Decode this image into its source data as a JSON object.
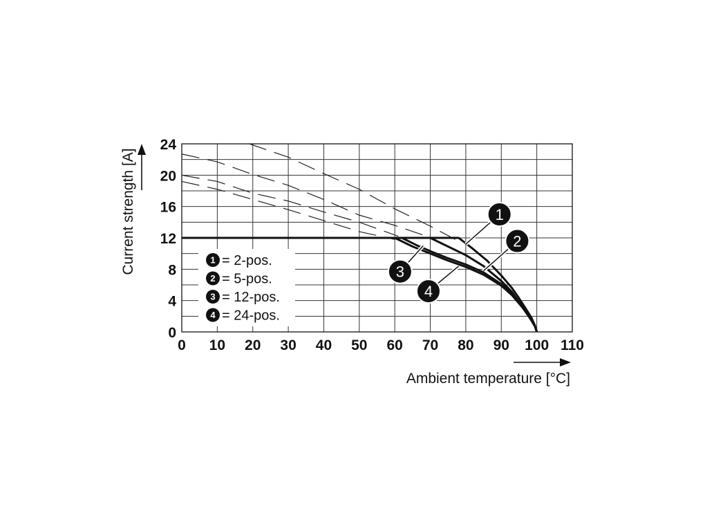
{
  "chart_data": {
    "type": "line",
    "xlabel": "Ambient temperature [°C]",
    "ylabel": "Current strength [A]",
    "xlim": [
      0,
      110
    ],
    "ylim": [
      0,
      24
    ],
    "x_ticks": [
      "0",
      "10",
      "20",
      "30",
      "40",
      "50",
      "60",
      "70",
      "80",
      "90",
      "100",
      "110"
    ],
    "y_ticks": [
      "0",
      "4",
      "8",
      "12",
      "16",
      "20",
      "24"
    ],
    "grid": true,
    "legend_position": "bottom-left",
    "legend": [
      {
        "number": "1",
        "label": "= 2-pos."
      },
      {
        "number": "2",
        "label": "= 5-pos."
      },
      {
        "number": "3",
        "label": "= 12-pos."
      },
      {
        "number": "4",
        "label": "= 24-pos."
      }
    ],
    "series": [
      {
        "number": "1",
        "style": "solid",
        "x": [
          0,
          78,
          82,
          86,
          90,
          93,
          95,
          97,
          98.5,
          99.5,
          100
        ],
        "y": [
          12,
          12,
          10.6,
          9.1,
          7.2,
          5.6,
          4.3,
          2.9,
          1.8,
          0.8,
          0
        ]
      },
      {
        "number": "2",
        "style": "solid",
        "x": [
          0,
          70,
          75,
          80,
          85,
          90,
          93,
          96,
          98,
          99.5,
          100
        ],
        "y": [
          12,
          12,
          10.9,
          9.8,
          8.4,
          6.5,
          5.1,
          3.2,
          1.9,
          0.7,
          0
        ]
      },
      {
        "number": "3",
        "style": "solid",
        "x": [
          0,
          62,
          66,
          70,
          75,
          80,
          85,
          90,
          93,
          96,
          98,
          99.5,
          100
        ],
        "y": [
          12,
          12,
          11.1,
          10.3,
          9.4,
          8.6,
          7.6,
          6.1,
          4.9,
          3.2,
          1.9,
          0.7,
          0
        ]
      },
      {
        "number": "4",
        "style": "solid",
        "x": [
          0,
          60,
          65,
          70,
          75,
          80,
          85,
          90,
          93,
          96,
          98,
          99.5,
          100
        ],
        "y": [
          12,
          12,
          10.9,
          10.0,
          9.1,
          8.3,
          7.3,
          5.9,
          4.7,
          3.1,
          1.8,
          0.7,
          0
        ]
      },
      {
        "number": "1",
        "style": "dashed",
        "x": [
          19,
          30,
          40,
          50,
          60,
          70,
          77
        ],
        "y": [
          24,
          22.3,
          20.2,
          18.2,
          15.7,
          13.5,
          11.8
        ]
      },
      {
        "number": "2",
        "style": "dashed",
        "x": [
          0,
          10,
          20,
          30,
          40,
          50,
          60,
          69
        ],
        "y": [
          22.7,
          21.7,
          20.1,
          18.7,
          16.9,
          14.9,
          13.6,
          12.2
        ]
      },
      {
        "number": "3",
        "style": "dashed",
        "x": [
          0,
          10,
          20,
          30,
          40,
          50,
          61
        ],
        "y": [
          20,
          19.2,
          17.7,
          16.7,
          15.3,
          14.0,
          12.2
        ]
      },
      {
        "number": "4",
        "style": "dashed",
        "x": [
          0,
          10,
          20,
          30,
          40,
          50,
          60
        ],
        "y": [
          19.2,
          18.2,
          16.9,
          15.6,
          14.2,
          12.8,
          11.8
        ]
      }
    ],
    "callouts": [
      {
        "number": "1",
        "x": 89.5,
        "y": 15.0,
        "to_x": 80,
        "to_y": 11.2
      },
      {
        "number": "2",
        "x": 94.5,
        "y": 11.6,
        "to_x": 85,
        "to_y": 7.8
      },
      {
        "number": "3",
        "x": 61.5,
        "y": 7.7,
        "to_x": 68,
        "to_y": 11.0
      },
      {
        "number": "4",
        "x": 69.5,
        "y": 5.2,
        "to_x": 78,
        "to_y": 8.4
      }
    ]
  }
}
